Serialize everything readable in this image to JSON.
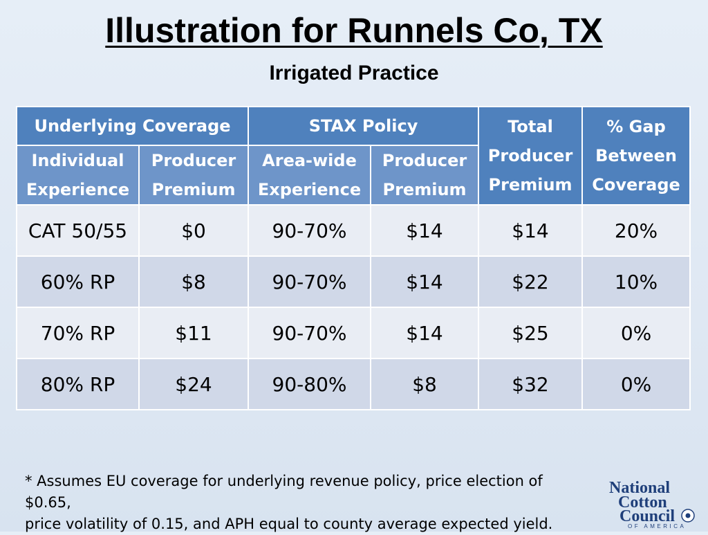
{
  "title": "Illustration for Runnels Co, TX",
  "subtitle": "Irrigated Practice",
  "table": {
    "group_headers": {
      "underlying": "Underlying Coverage",
      "stax": "STAX Policy",
      "total_line1": "Total",
      "total_line2": "Producer",
      "total_line3": "Premium",
      "gap_line1": "% Gap",
      "gap_line2": "Between",
      "gap_line3": "Coverage"
    },
    "sub_headers": {
      "individual_line1": "Individual",
      "individual_line2": "Experience",
      "producer1_line1": "Producer",
      "producer1_line2": "Premium",
      "areawide_line1": "Area-wide",
      "areawide_line2": "Experience",
      "producer2_line1": "Producer",
      "producer2_line2": "Premium"
    },
    "rows": [
      [
        "CAT 50/55",
        "$0",
        "90-70%",
        "$14",
        "$14",
        "20%"
      ],
      [
        "60% RP",
        "$8",
        "90-70%",
        "$14",
        "$22",
        "10%"
      ],
      [
        "70% RP",
        "$11",
        "90-70%",
        "$14",
        "$25",
        "0%"
      ],
      [
        "80% RP",
        "$24",
        "90-80%",
        "$8",
        "$32",
        "0%"
      ]
    ]
  },
  "footnote": {
    "line1": "* Assumes EU coverage for underlying revenue policy, price election of $0.65,",
    "line2": "price volatility of 0.15, and APH equal to county average expected yield."
  },
  "logo": {
    "line1": "National",
    "line2": "Cotton",
    "line3": "Council",
    "line4": "OF AMERICA"
  },
  "colors": {
    "header": "#4f81bd",
    "subheader": "#6e95c9",
    "row_light": "#e9edf4",
    "row_dark": "#d0d8e8",
    "logo_blue": "#1f3f7a"
  }
}
